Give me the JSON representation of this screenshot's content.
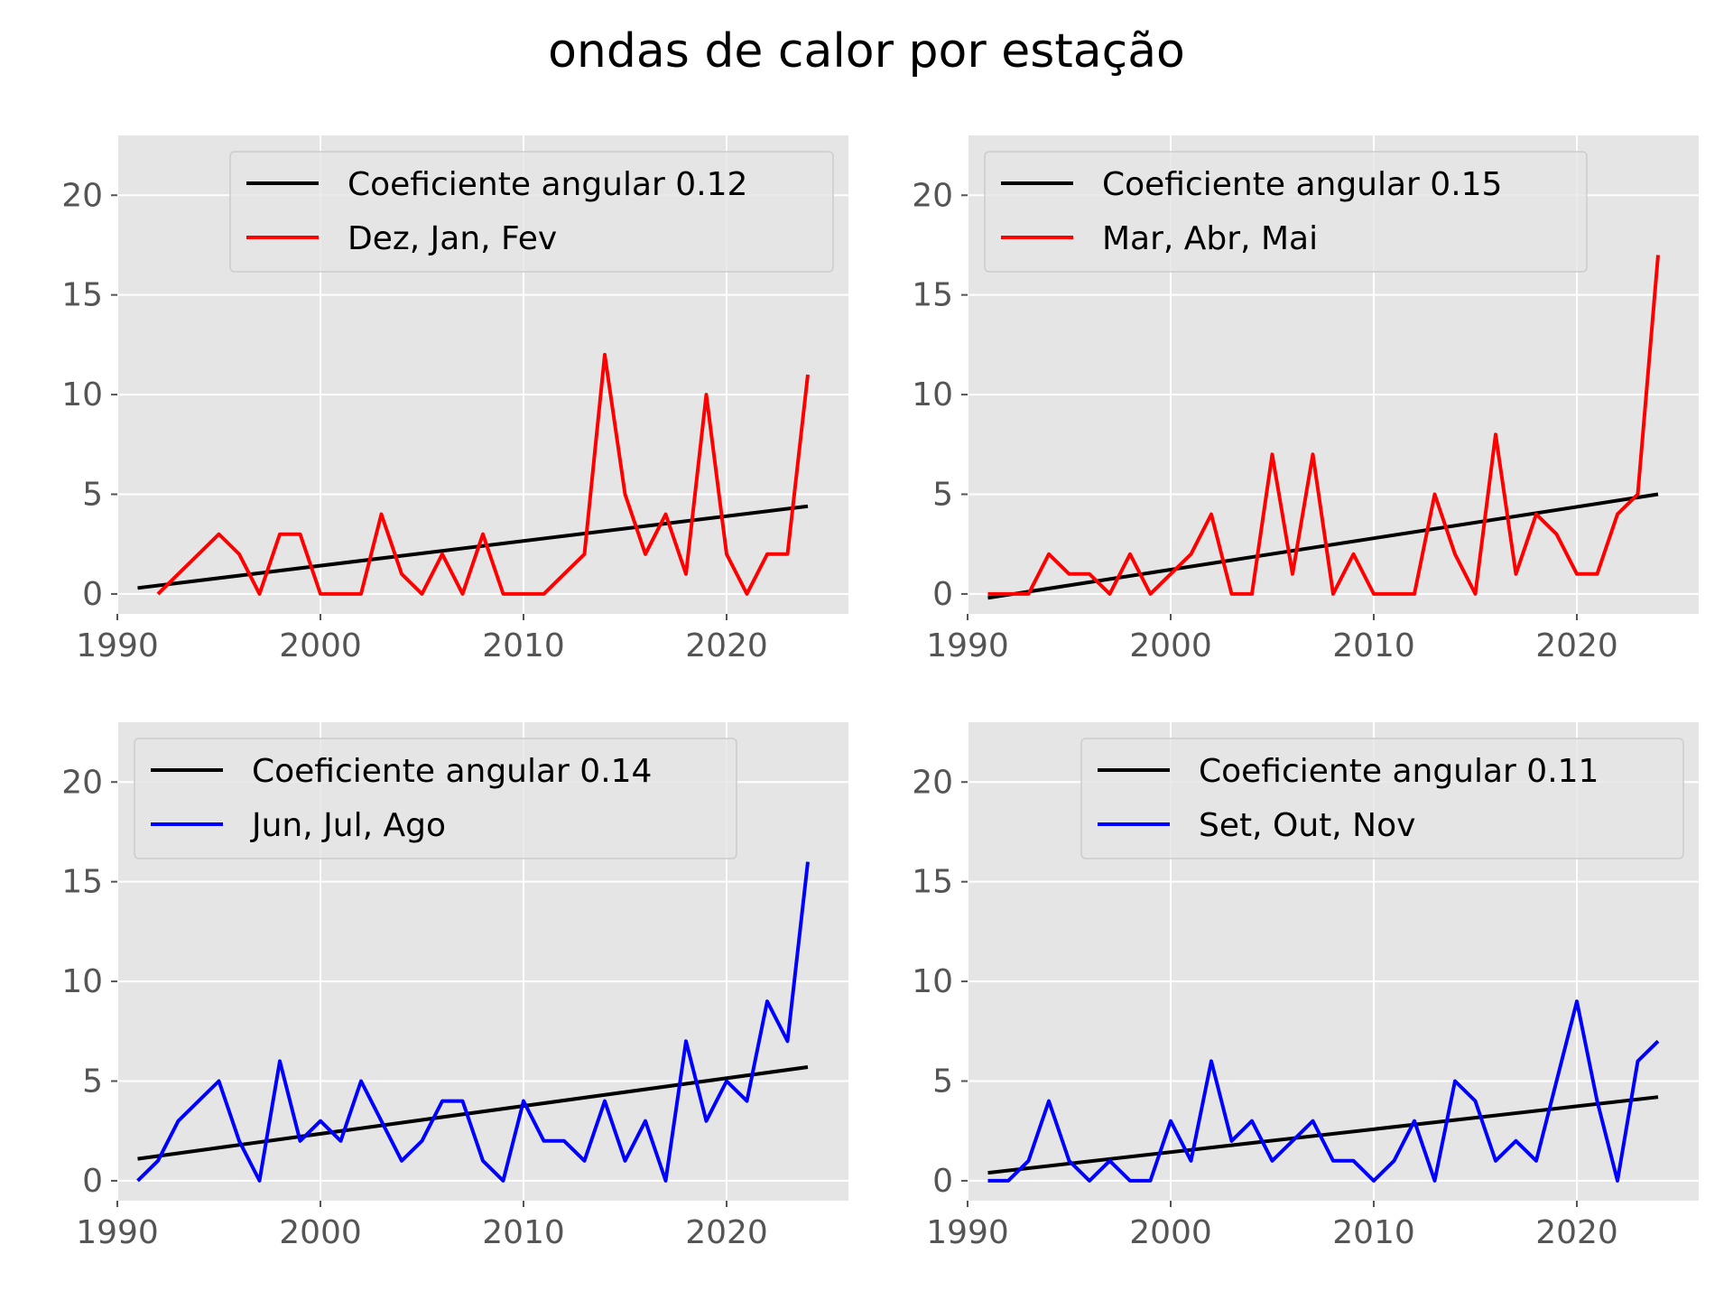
{
  "title": "ondas de calor por estação",
  "colors": {
    "axes_background": "#e5e5e5",
    "grid": "#ffffff",
    "tick_label": "#555555",
    "trend": "#000000",
    "red_series": "#ff0000",
    "blue_series": "#0000ff"
  },
  "chart_data": [
    {
      "type": "line",
      "xlim": [
        1990,
        2026
      ],
      "ylim": [
        -1,
        23
      ],
      "xticks": [
        1990,
        2000,
        2010,
        2020
      ],
      "yticks": [
        0,
        5,
        10,
        15,
        20
      ],
      "grid": true,
      "legend_position": "top-right",
      "series": [
        {
          "name": "Coeficiente angular 0.12",
          "color": "#000000",
          "x": [
            1991,
            2024
          ],
          "y": [
            0.3,
            4.4
          ]
        },
        {
          "name": "Dez, Jan, Fev",
          "color": "#ff0000",
          "x": [
            1992,
            1993,
            1994,
            1995,
            1996,
            1997,
            1998,
            1999,
            2000,
            2001,
            2002,
            2003,
            2004,
            2005,
            2006,
            2007,
            2008,
            2009,
            2010,
            2011,
            2012,
            2013,
            2014,
            2015,
            2016,
            2017,
            2018,
            2019,
            2020,
            2021,
            2022,
            2023,
            2024
          ],
          "y": [
            0,
            1,
            2,
            3,
            2,
            0,
            3,
            3,
            0,
            0,
            0,
            4,
            1,
            0,
            2,
            0,
            3,
            0,
            0,
            0,
            1,
            2,
            12,
            5,
            2,
            4,
            1,
            10,
            2,
            0,
            2,
            2,
            11
          ]
        }
      ]
    },
    {
      "type": "line",
      "xlim": [
        1990,
        2026
      ],
      "ylim": [
        -1,
        23
      ],
      "xticks": [
        1990,
        2000,
        2010,
        2020
      ],
      "yticks": [
        0,
        5,
        10,
        15,
        20
      ],
      "grid": true,
      "legend_position": "top-left",
      "series": [
        {
          "name": "Coeficiente angular 0.15",
          "color": "#000000",
          "x": [
            1991,
            2024
          ],
          "y": [
            -0.2,
            5.0
          ]
        },
        {
          "name": "Mar, Abr, Mai",
          "color": "#ff0000",
          "x": [
            1991,
            1992,
            1993,
            1994,
            1995,
            1996,
            1997,
            1998,
            1999,
            2000,
            2001,
            2002,
            2003,
            2004,
            2005,
            2006,
            2007,
            2008,
            2009,
            2010,
            2011,
            2012,
            2013,
            2014,
            2015,
            2016,
            2017,
            2018,
            2019,
            2020,
            2021,
            2022,
            2023,
            2024
          ],
          "y": [
            0,
            0,
            0,
            2,
            1,
            1,
            0,
            2,
            0,
            1,
            2,
            4,
            0,
            0,
            7,
            1,
            7,
            0,
            2,
            0,
            0,
            0,
            5,
            2,
            0,
            8,
            1,
            4,
            3,
            1,
            1,
            4,
            5,
            17
          ]
        }
      ]
    },
    {
      "type": "line",
      "xlim": [
        1990,
        2026
      ],
      "ylim": [
        -1,
        23
      ],
      "xticks": [
        1990,
        2000,
        2010,
        2020
      ],
      "yticks": [
        0,
        5,
        10,
        15,
        20
      ],
      "grid": true,
      "legend_position": "top-left",
      "series": [
        {
          "name": "Coeficiente angular 0.14",
          "color": "#000000",
          "x": [
            1991,
            2024
          ],
          "y": [
            1.1,
            5.7
          ]
        },
        {
          "name": "Jun, Jul, Ago",
          "color": "#0000ff",
          "x": [
            1991,
            1992,
            1993,
            1994,
            1995,
            1996,
            1997,
            1998,
            1999,
            2000,
            2001,
            2002,
            2003,
            2004,
            2005,
            2006,
            2007,
            2008,
            2009,
            2010,
            2011,
            2012,
            2013,
            2014,
            2015,
            2016,
            2017,
            2018,
            2019,
            2020,
            2021,
            2022,
            2023,
            2024
          ],
          "y": [
            0,
            1,
            3,
            4,
            5,
            2,
            0,
            6,
            2,
            3,
            2,
            5,
            3,
            1,
            2,
            4,
            4,
            1,
            0,
            4,
            2,
            2,
            1,
            4,
            1,
            3,
            0,
            7,
            3,
            5,
            4,
            9,
            7,
            16
          ]
        }
      ]
    },
    {
      "type": "line",
      "xlim": [
        1990,
        2026
      ],
      "ylim": [
        -1,
        23
      ],
      "xticks": [
        1990,
        2000,
        2010,
        2020
      ],
      "yticks": [
        0,
        5,
        10,
        15,
        20
      ],
      "grid": true,
      "legend_position": "top-right",
      "series": [
        {
          "name": "Coeficiente angular 0.11",
          "color": "#000000",
          "x": [
            1991,
            2024
          ],
          "y": [
            0.4,
            4.2
          ]
        },
        {
          "name": "Set, Out, Nov",
          "color": "#0000ff",
          "x": [
            1991,
            1992,
            1993,
            1994,
            1995,
            1996,
            1997,
            1998,
            1999,
            2000,
            2001,
            2002,
            2003,
            2004,
            2005,
            2006,
            2007,
            2008,
            2009,
            2010,
            2011,
            2012,
            2013,
            2014,
            2015,
            2016,
            2017,
            2018,
            2019,
            2020,
            2021,
            2022,
            2023,
            2024
          ],
          "y": [
            0,
            0,
            1,
            4,
            1,
            0,
            1,
            0,
            0,
            3,
            1,
            6,
            2,
            3,
            1,
            2,
            3,
            1,
            1,
            0,
            1,
            3,
            0,
            5,
            4,
            1,
            2,
            1,
            5,
            9,
            4,
            0,
            6,
            7
          ]
        }
      ]
    }
  ]
}
